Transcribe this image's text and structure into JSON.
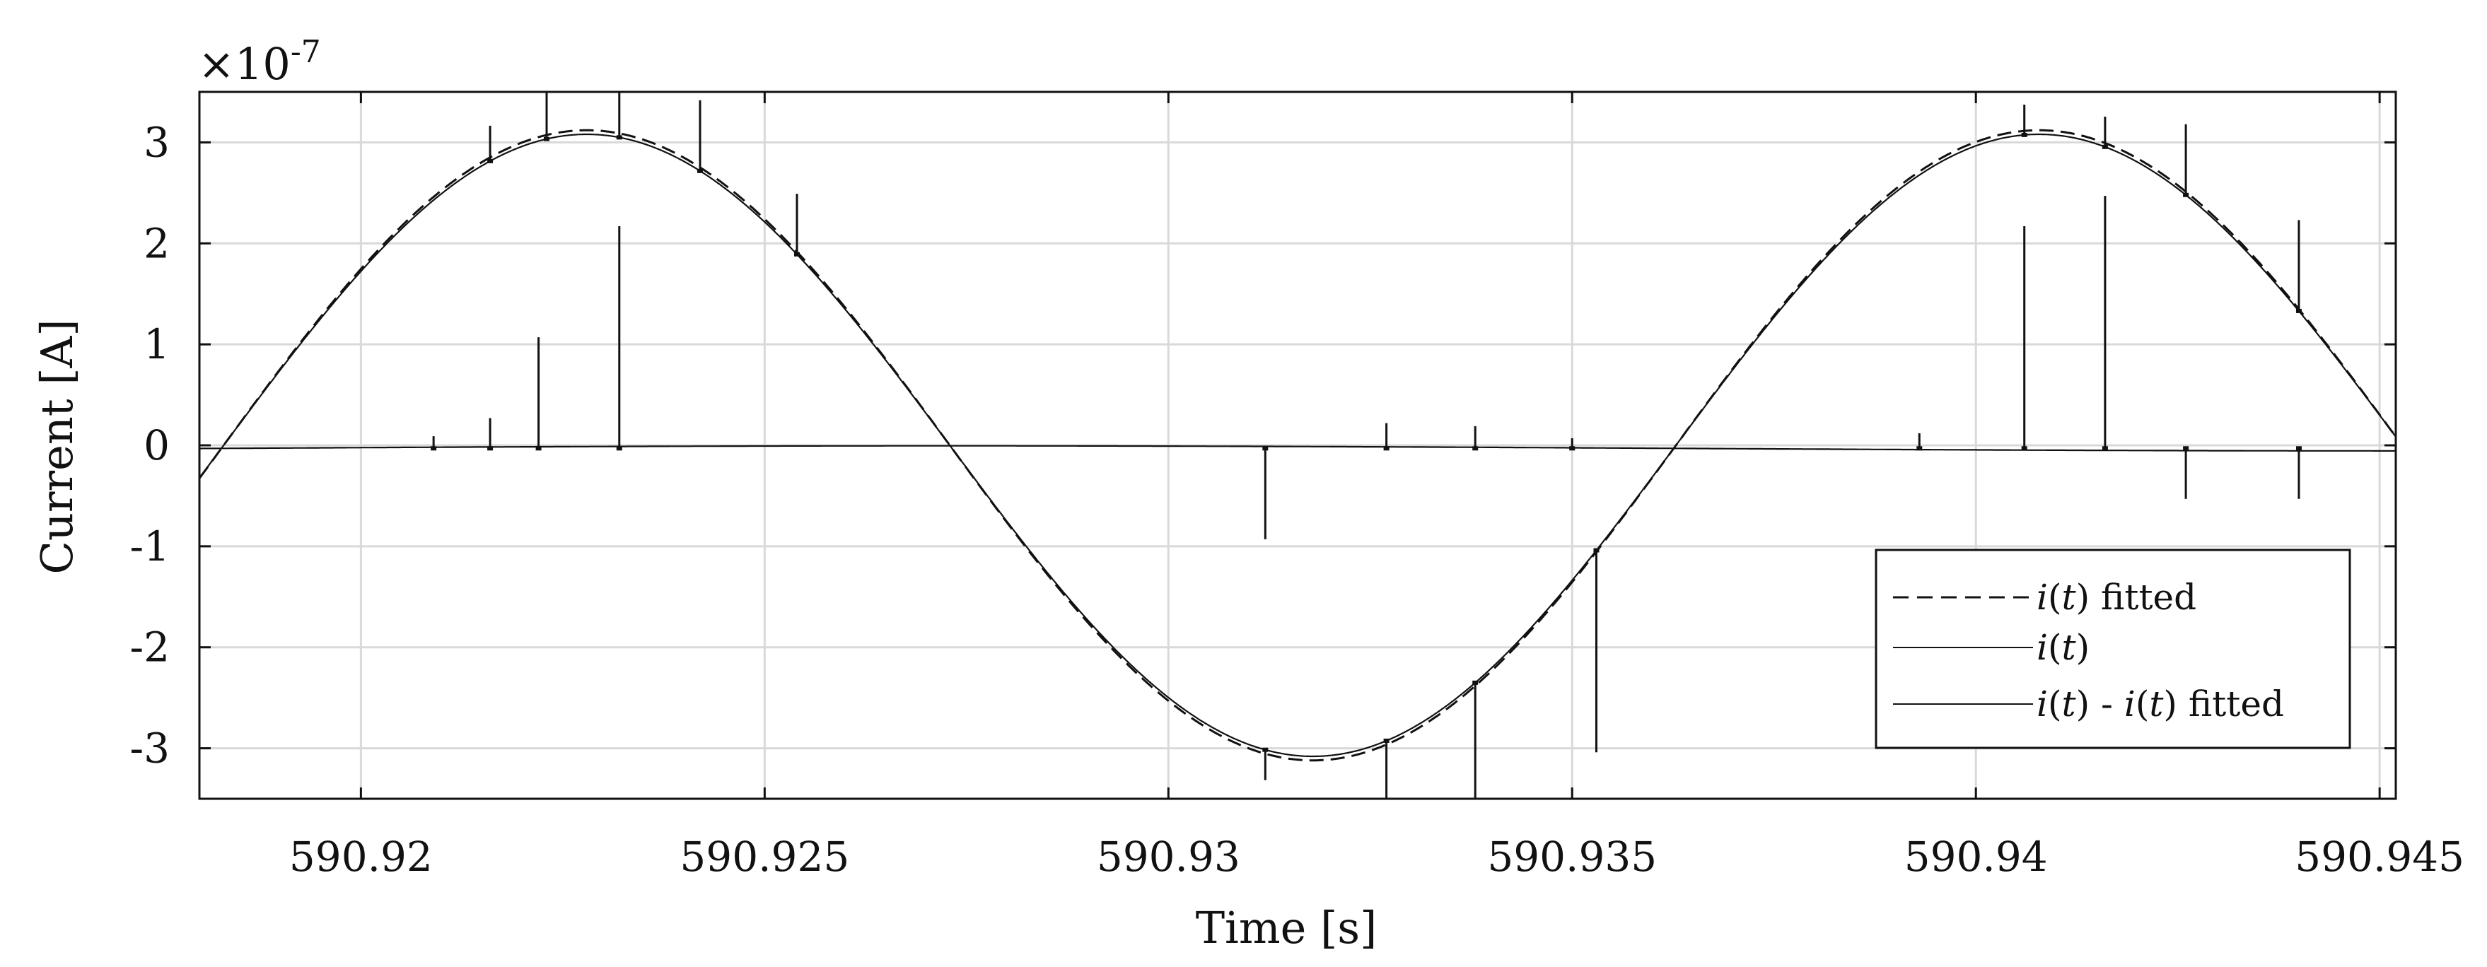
{
  "chart_data": {
    "type": "line",
    "title": "",
    "xlabel": "Time [s]",
    "ylabel": "Current [A]",
    "y_multiplier": "×10",
    "y_multiplier_exp": "-7",
    "xlim": [
      590.918,
      590.9452
    ],
    "ylim": [
      -3.5,
      3.5
    ],
    "x_ticks": [
      590.92,
      590.925,
      590.93,
      590.935,
      590.94,
      590.945
    ],
    "x_tick_labels": [
      "590.92",
      "590.925",
      "590.93",
      "590.935",
      "590.94",
      "590.945"
    ],
    "y_ticks": [
      3,
      2,
      1,
      0,
      -1,
      -2,
      -3
    ],
    "y_tick_labels": [
      "3",
      "2",
      "1",
      "0",
      "-1",
      "-2",
      "-3"
    ],
    "grid": true,
    "legend_position": "bottom-right",
    "signal": {
      "amplitude": 3.1,
      "frequency_hz": 55.6,
      "phase_zero_crossing": 590.9183,
      "unit_scale": "1e-7"
    },
    "series": [
      {
        "name": "i(t) fitted",
        "style": "dashed",
        "amplitude": 3.12
      },
      {
        "name": "i(t)",
        "style": "solid",
        "amplitude": 3.08,
        "spikes": [
          {
            "x": 590.9216,
            "dy": 0.35
          },
          {
            "x": 590.9223,
            "dy": 0.6
          },
          {
            "x": 590.9232,
            "dy": 0.9
          },
          {
            "x": 590.9242,
            "dy": 0.7
          },
          {
            "x": 590.9254,
            "dy": 0.6
          },
          {
            "x": 590.9312,
            "dy": -0.3
          },
          {
            "x": 590.9327,
            "dy": -0.9
          },
          {
            "x": 590.9338,
            "dy": -1.2
          },
          {
            "x": 590.9353,
            "dy": -2.0
          },
          {
            "x": 590.9406,
            "dy": 0.3
          },
          {
            "x": 590.9416,
            "dy": 0.3
          },
          {
            "x": 590.9426,
            "dy": 0.7
          },
          {
            "x": 590.944,
            "dy": 0.9
          }
        ]
      },
      {
        "name": "i(t) - i(t) fitted",
        "style": "solid",
        "baseline": -0.03,
        "spikes": [
          {
            "x": 590.9209,
            "dy": 0.12
          },
          {
            "x": 590.9216,
            "dy": 0.3
          },
          {
            "x": 590.9222,
            "dy": 1.1
          },
          {
            "x": 590.9232,
            "dy": 2.2
          },
          {
            "x": 590.9312,
            "dy": -0.9
          },
          {
            "x": 590.9327,
            "dy": 0.25
          },
          {
            "x": 590.9338,
            "dy": 0.22
          },
          {
            "x": 590.935,
            "dy": 0.1
          },
          {
            "x": 590.9393,
            "dy": 0.15
          },
          {
            "x": 590.9406,
            "dy": 2.2
          },
          {
            "x": 590.9416,
            "dy": 2.5
          },
          {
            "x": 590.9426,
            "dy": -0.5
          },
          {
            "x": 590.944,
            "dy": -0.5
          }
        ]
      }
    ],
    "legend": [
      {
        "func": "i",
        "var": "t",
        "suffix": " fitted"
      },
      {
        "func": "i",
        "var": "t",
        "suffix": ""
      },
      {
        "func": "i",
        "var": "t",
        "suffix": " - ",
        "func2": "i",
        "var2": "t",
        "suffix2": " fitted"
      }
    ]
  }
}
